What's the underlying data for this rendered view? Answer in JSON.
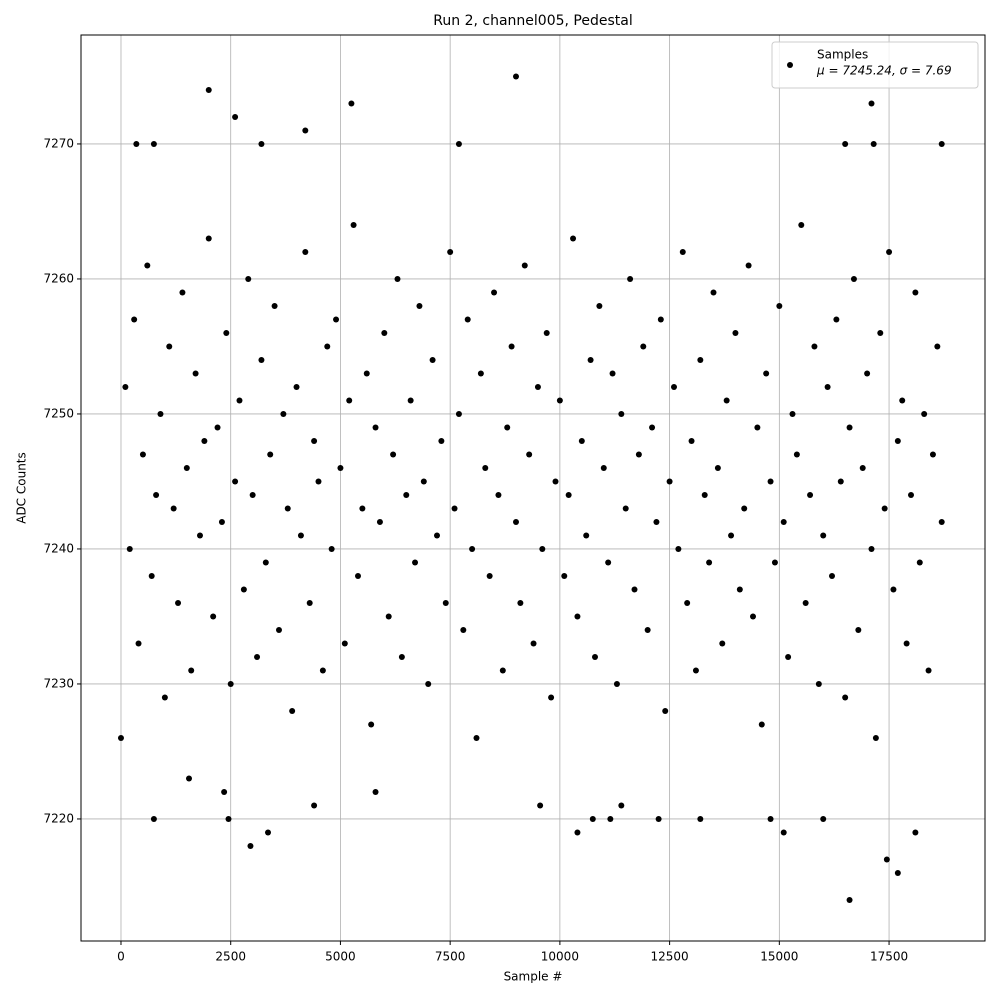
{
  "chart_data": {
    "type": "scatter",
    "title": "Run 2, channel005, Pedestal",
    "x_label": "Sample #",
    "y_label": "ADC Counts",
    "xlim": [
      -911,
      19686
    ],
    "ylim": [
      7210.96,
      7278.07
    ],
    "xticks": [
      0,
      2500,
      5000,
      7500,
      10000,
      12500,
      15000,
      17500
    ],
    "yticks": [
      7220,
      7230,
      7240,
      7250,
      7260,
      7270
    ],
    "grid": true,
    "legend_position": "upper right",
    "series": [
      {
        "name": "Samples",
        "color": "#000000",
        "x": [
          0,
          100,
          200,
          300,
          400,
          500,
          600,
          700,
          800,
          900,
          1000,
          1100,
          1200,
          1300,
          1400,
          1500,
          1600,
          1700,
          1800,
          1900,
          2000,
          2100,
          2200,
          2300,
          2400,
          2500,
          2600,
          2700,
          2800,
          2900,
          3000,
          3100,
          3200,
          3300,
          3400,
          3500,
          3600,
          3700,
          3800,
          3900,
          4000,
          4100,
          4200,
          4300,
          4400,
          4500,
          4600,
          4700,
          4800,
          4900,
          5000,
          5100,
          5200,
          5300,
          5400,
          5500,
          5600,
          5700,
          5800,
          5900,
          6000,
          6100,
          6200,
          6300,
          6400,
          6500,
          6600,
          6700,
          6800,
          6900,
          7000,
          7100,
          7200,
          7300,
          7400,
          7500,
          7600,
          7700,
          7800,
          7900,
          8000,
          8100,
          8200,
          8300,
          8400,
          8500,
          8600,
          8700,
          8800,
          8900,
          9000,
          9100,
          9200,
          9300,
          9400,
          9500,
          9600,
          9700,
          9800,
          9900,
          10000,
          10100,
          10200,
          10300,
          10400,
          10500,
          10600,
          10700,
          10800,
          10900,
          11000,
          11100,
          11200,
          11300,
          11400,
          11500,
          11600,
          11700,
          11800,
          11900,
          12000,
          12100,
          12200,
          12300,
          12400,
          12500,
          12600,
          12700,
          12800,
          12900,
          13000,
          13100,
          13200,
          13300,
          13400,
          13500,
          13600,
          13700,
          13800,
          13900,
          14000,
          14100,
          14200,
          14300,
          14400,
          14500,
          14600,
          14700,
          14800,
          14900,
          15000,
          15100,
          15200,
          15300,
          15400,
          15500,
          15600,
          15700,
          15800,
          15900,
          16000,
          16100,
          16200,
          16300,
          16400,
          16500,
          16600,
          16700,
          16800,
          16900,
          17000,
          17100,
          17200,
          17300,
          17400,
          17500,
          17600,
          17700,
          17800,
          17900,
          18000,
          18100,
          18200,
          18300,
          18400,
          18500,
          18600,
          18700,
          2000,
          9000,
          5250,
          17100,
          2600,
          4200,
          7700,
          3200,
          16500,
          17150,
          18700,
          350,
          750,
          16600,
          17700,
          17450,
          2950,
          10400,
          3350,
          18100,
          15100,
          750,
          2450,
          10750,
          11150,
          12250,
          13200,
          14800,
          16000,
          2350,
          5800,
          4400,
          9550,
          11400,
          1550
        ],
        "values": [
          7226,
          7252,
          7240,
          7257,
          7233,
          7247,
          7261,
          7238,
          7244,
          7250,
          7229,
          7255,
          7243,
          7236,
          7259,
          7246,
          7231,
          7253,
          7241,
          7248,
          7263,
          7235,
          7249,
          7242,
          7256,
          7230,
          7245,
          7251,
          7237,
          7260,
          7244,
          7232,
          7254,
          7239,
          7247,
          7258,
          7234,
          7250,
          7243,
          7228,
          7252,
          7241,
          7262,
          7236,
          7248,
          7245,
          7231,
          7255,
          7240,
          7257,
          7246,
          7233,
          7251,
          7264,
          7238,
          7243,
          7253,
          7227,
          7249,
          7242,
          7256,
          7235,
          7247,
          7260,
          7232,
          7244,
          7251,
          7239,
          7258,
          7245,
          7230,
          7254,
          7241,
          7248,
          7236,
          7262,
          7243,
          7250,
          7234,
          7257,
          7240,
          7226,
          7253,
          7246,
          7238,
          7259,
          7244,
          7231,
          7249,
          7255,
          7242,
          7236,
          7261,
          7247,
          7233,
          7252,
          7240,
          7256,
          7229,
          7245,
          7251,
          7238,
          7244,
          7263,
          7235,
          7248,
          7241,
          7254,
          7232,
          7258,
          7246,
          7239,
          7253,
          7230,
          7250,
          7243,
          7260,
          7237,
          7247,
          7255,
          7234,
          7249,
          7242,
          7257,
          7228,
          7245,
          7252,
          7240,
          7262,
          7236,
          7248,
          7231,
          7254,
          7244,
          7239,
          7259,
          7246,
          7233,
          7251,
          7241,
          7256,
          7237,
          7243,
          7261,
          7235,
          7249,
          7227,
          7253,
          7245,
          7239,
          7258,
          7242,
          7232,
          7250,
          7247,
          7264,
          7236,
          7244,
          7255,
          7230,
          7241,
          7252,
          7238,
          7257,
          7245,
          7229,
          7249,
          7260,
          7234,
          7246,
          7253,
          7240,
          7226,
          7256,
          7243,
          7262,
          7237,
          7248,
          7251,
          7233,
          7244,
          7259,
          7239,
          7250,
          7231,
          7247,
          7255,
          7242,
          7274,
          7275,
          7273,
          7273,
          7272,
          7271,
          7270,
          7270,
          7270,
          7270,
          7270,
          7270,
          7270,
          7214,
          7216,
          7217,
          7218,
          7219,
          7219,
          7219,
          7219,
          7220,
          7220,
          7220,
          7220,
          7220,
          7220,
          7220,
          7220,
          7222,
          7222,
          7221,
          7221,
          7221,
          7223
        ]
      }
    ],
    "legend_stats": "μ = 7245.24, σ = 7.69"
  }
}
